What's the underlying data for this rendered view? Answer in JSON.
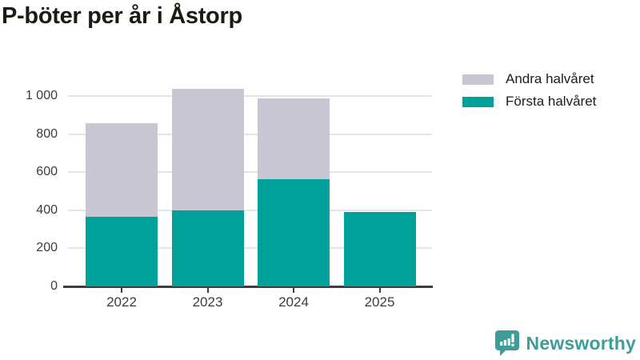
{
  "header": {
    "title": "P-böter per år i Åstorp"
  },
  "legend": {
    "items": [
      {
        "label": "Andra halvåret",
        "color": "#C8C6D2"
      },
      {
        "label": "Första halvåret",
        "color": "#00A19A"
      }
    ]
  },
  "chart_data": {
    "type": "bar",
    "stacked": true,
    "title": "P-böter per år i Åstorp",
    "categories": [
      "2022",
      "2023",
      "2024",
      "2025"
    ],
    "series": [
      {
        "name": "Första halvåret",
        "color": "#00A19A",
        "values": [
          365,
          398,
          565,
          389
        ]
      },
      {
        "name": "Andra halvåret",
        "color": "#C8C6D2",
        "values": [
          494,
          640,
          421,
          0
        ]
      }
    ],
    "totals": [
      859,
      1038,
      986,
      389
    ],
    "xlabel": "",
    "ylabel": "",
    "ylim": [
      0,
      1000
    ],
    "yticks": [
      0,
      200,
      400,
      600,
      800,
      1000
    ],
    "ytick_labels": [
      "0",
      "200",
      "400",
      "600",
      "800",
      "1 000"
    ],
    "grid": true,
    "legend_position": "top-right",
    "legend_order": [
      "Andra halvåret",
      "Första halvåret"
    ]
  },
  "branding": {
    "wordmark": "Newsworthy",
    "color": "#3E9C99"
  }
}
